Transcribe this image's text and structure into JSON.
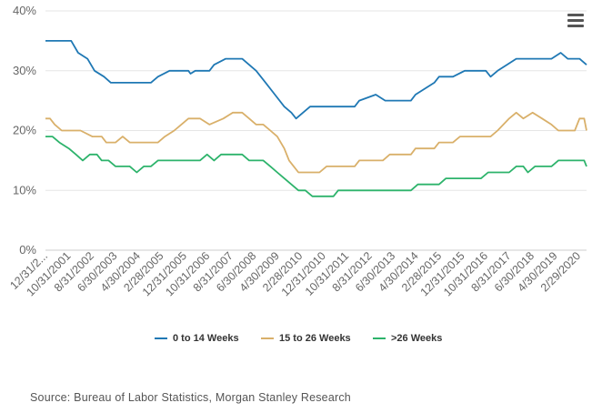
{
  "menu_icon": "hamburger-menu-icon",
  "source": "Source: Bureau of Labor Statistics, Morgan Stanley Research",
  "chart_data": {
    "type": "line",
    "title": "",
    "xlabel": "",
    "ylabel": "",
    "ylim": [
      0,
      40
    ],
    "yticks": [
      "0%",
      "10%",
      "20%",
      "30%",
      "40%"
    ],
    "yticks_values": [
      0,
      10,
      20,
      30,
      40
    ],
    "x_start": "12/31/2000",
    "x_end": "3/31/2020",
    "xtick_labels": [
      "12/31/2...",
      "10/31/2001",
      "8/31/2002",
      "6/30/2003",
      "4/30/2004",
      "2/28/2005",
      "12/31/2005",
      "10/31/2006",
      "8/31/2007",
      "6/30/2008",
      "4/30/2009",
      "2/28/2010",
      "12/31/2010",
      "10/31/2011",
      "8/31/2012",
      "6/30/2013",
      "4/30/2014",
      "2/28/2015",
      "12/31/2015",
      "10/31/2016",
      "8/31/2017",
      "6/30/2018",
      "4/30/2019",
      "2/29/2020"
    ],
    "grid": "horizontal",
    "legend_position": "bottom",
    "series": [
      {
        "name": "0 to 14 Weeks",
        "color": "#1f78b4",
        "points": [
          [
            "12/31/2000",
            35
          ],
          [
            "11/30/2001",
            35
          ],
          [
            "2/28/2002",
            33
          ],
          [
            "6/30/2002",
            32
          ],
          [
            "9/30/2002",
            30
          ],
          [
            "1/31/2003",
            29
          ],
          [
            "4/30/2003",
            28
          ],
          [
            "9/30/2003",
            28
          ],
          [
            "12/31/2003",
            28
          ],
          [
            "3/31/2004",
            28
          ],
          [
            "9/30/2004",
            28
          ],
          [
            "12/31/2004",
            29
          ],
          [
            "5/31/2005",
            30
          ],
          [
            "1/31/2006",
            30
          ],
          [
            "2/28/2006",
            29.5
          ],
          [
            "4/30/2006",
            30
          ],
          [
            "10/31/2006",
            30
          ],
          [
            "12/31/2006",
            31
          ],
          [
            "5/31/2007",
            32
          ],
          [
            "12/31/2007",
            32
          ],
          [
            "3/31/2008",
            31
          ],
          [
            "6/30/2008",
            30
          ],
          [
            "10/31/2008",
            28
          ],
          [
            "2/28/2009",
            26
          ],
          [
            "6/30/2009",
            24
          ],
          [
            "9/30/2009",
            23
          ],
          [
            "11/30/2009",
            22
          ],
          [
            "2/28/2010",
            23
          ],
          [
            "5/31/2010",
            24
          ],
          [
            "12/31/2011",
            24
          ],
          [
            "2/29/2012",
            25
          ],
          [
            "9/30/2012",
            26
          ],
          [
            "1/31/2013",
            25
          ],
          [
            "12/31/2013",
            25
          ],
          [
            "2/28/2014",
            26
          ],
          [
            "10/31/2014",
            28
          ],
          [
            "12/31/2014",
            29
          ],
          [
            "6/30/2015",
            29
          ],
          [
            "11/30/2015",
            30
          ],
          [
            "3/31/2016",
            30
          ],
          [
            "8/31/2016",
            30
          ],
          [
            "10/31/2016",
            29
          ],
          [
            "1/31/2017",
            30
          ],
          [
            "5/31/2017",
            31
          ],
          [
            "9/30/2017",
            32
          ],
          [
            "12/31/2018",
            32
          ],
          [
            "4/30/2019",
            33
          ],
          [
            "7/31/2019",
            32
          ],
          [
            "12/31/2019",
            32
          ],
          [
            "3/31/2020",
            31
          ]
        ]
      },
      {
        "name": "15 to 26 Weeks",
        "color": "#d9b06a",
        "points": [
          [
            "12/31/2000",
            22
          ],
          [
            "2/28/2001",
            22
          ],
          [
            "4/30/2001",
            21
          ],
          [
            "7/31/2001",
            20
          ],
          [
            "11/30/2001",
            20
          ],
          [
            "3/31/2002",
            20
          ],
          [
            "8/31/2002",
            19
          ],
          [
            "12/31/2002",
            19
          ],
          [
            "2/28/2003",
            18
          ],
          [
            "6/30/2003",
            18
          ],
          [
            "9/30/2003",
            19
          ],
          [
            "12/31/2003",
            18
          ],
          [
            "12/31/2004",
            18
          ],
          [
            "3/31/2005",
            19
          ],
          [
            "7/31/2005",
            20
          ],
          [
            "10/31/2005",
            21
          ],
          [
            "1/31/2006",
            22
          ],
          [
            "6/30/2006",
            22
          ],
          [
            "10/31/2006",
            21
          ],
          [
            "4/30/2007",
            22
          ],
          [
            "8/31/2007",
            23
          ],
          [
            "12/31/2007",
            23
          ],
          [
            "3/31/2008",
            22
          ],
          [
            "6/30/2008",
            21
          ],
          [
            "9/30/2008",
            21
          ],
          [
            "12/31/2008",
            20
          ],
          [
            "3/31/2009",
            19
          ],
          [
            "6/30/2009",
            17
          ],
          [
            "8/31/2009",
            15
          ],
          [
            "10/31/2009",
            14
          ],
          [
            "12/31/2009",
            13
          ],
          [
            "9/30/2010",
            13
          ],
          [
            "12/31/2010",
            14
          ],
          [
            "12/31/2011",
            14
          ],
          [
            "2/29/2012",
            15
          ],
          [
            "12/31/2012",
            15
          ],
          [
            "3/31/2013",
            16
          ],
          [
            "12/31/2013",
            16
          ],
          [
            "2/28/2014",
            17
          ],
          [
            "10/31/2014",
            17
          ],
          [
            "12/31/2014",
            18
          ],
          [
            "6/30/2015",
            18
          ],
          [
            "9/30/2015",
            19
          ],
          [
            "6/30/2016",
            19
          ],
          [
            "10/31/2016",
            19
          ],
          [
            "1/31/2017",
            20
          ],
          [
            "6/30/2017",
            22
          ],
          [
            "9/30/2017",
            23
          ],
          [
            "12/31/2017",
            22
          ],
          [
            "4/30/2018",
            23
          ],
          [
            "8/31/2018",
            22
          ],
          [
            "12/31/2018",
            21
          ],
          [
            "3/31/2019",
            20
          ],
          [
            "10/31/2019",
            20
          ],
          [
            "12/31/2019",
            22
          ],
          [
            "2/29/2020",
            22
          ],
          [
            "3/31/2020",
            20
          ]
        ]
      },
      {
        "name": ">26 Weeks",
        "color": "#2db36b",
        "points": [
          [
            "12/31/2000",
            19
          ],
          [
            "3/31/2001",
            19
          ],
          [
            "6/30/2001",
            18
          ],
          [
            "10/31/2001",
            17
          ],
          [
            "1/31/2002",
            16
          ],
          [
            "4/30/2002",
            15
          ],
          [
            "7/31/2002",
            16
          ],
          [
            "10/31/2002",
            16
          ],
          [
            "12/31/2002",
            15
          ],
          [
            "3/31/2003",
            15
          ],
          [
            "6/30/2003",
            14
          ],
          [
            "12/31/2003",
            14
          ],
          [
            "3/31/2004",
            13
          ],
          [
            "6/30/2004",
            14
          ],
          [
            "9/30/2004",
            14
          ],
          [
            "12/31/2004",
            15
          ],
          [
            "6/30/2006",
            15
          ],
          [
            "9/30/2006",
            16
          ],
          [
            "12/31/2006",
            15
          ],
          [
            "3/31/2007",
            16
          ],
          [
            "8/31/2007",
            16
          ],
          [
            "12/31/2007",
            16
          ],
          [
            "3/31/2008",
            15
          ],
          [
            "9/30/2008",
            15
          ],
          [
            "12/31/2008",
            14
          ],
          [
            "3/31/2009",
            13
          ],
          [
            "6/30/2009",
            12
          ],
          [
            "9/30/2009",
            11
          ],
          [
            "12/31/2009",
            10
          ],
          [
            "3/31/2010",
            10
          ],
          [
            "6/30/2010",
            9
          ],
          [
            "3/31/2011",
            9
          ],
          [
            "5/31/2011",
            10
          ],
          [
            "12/31/2013",
            10
          ],
          [
            "3/31/2014",
            11
          ],
          [
            "12/31/2014",
            11
          ],
          [
            "3/31/2015",
            12
          ],
          [
            "6/30/2016",
            12
          ],
          [
            "9/30/2016",
            13
          ],
          [
            "6/30/2017",
            13
          ],
          [
            "9/30/2017",
            14
          ],
          [
            "12/31/2017",
            14
          ],
          [
            "2/28/2018",
            13
          ],
          [
            "5/31/2018",
            14
          ],
          [
            "12/31/2018",
            14
          ],
          [
            "3/31/2019",
            15
          ],
          [
            "2/29/2020",
            15
          ],
          [
            "3/31/2020",
            14
          ]
        ]
      }
    ]
  }
}
